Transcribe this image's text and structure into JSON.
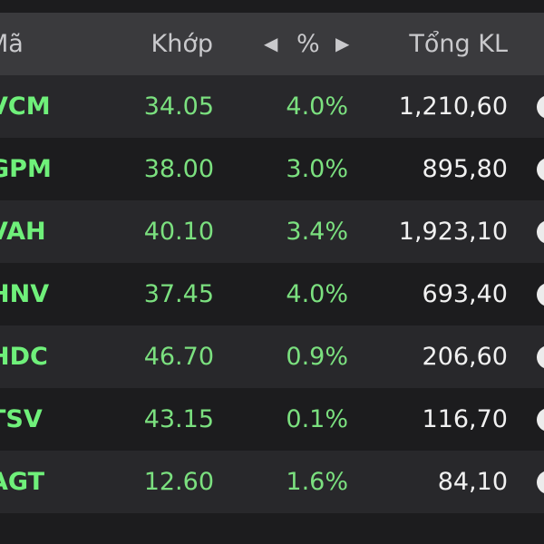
{
  "header": {
    "symbol_label": "Mã",
    "match_label": "Khớp",
    "pct_label": "%",
    "total_label": "Tổng KL",
    "prev_icon": "◀",
    "next_icon": "▶"
  },
  "rows": [
    {
      "symbol": "VCM",
      "price": "34.05",
      "pct": "4.0%",
      "volume": "1,210,60"
    },
    {
      "symbol": "GPM",
      "price": "38.00",
      "pct": "3.0%",
      "volume": "895,80"
    },
    {
      "symbol": "VAH",
      "price": "40.10",
      "pct": "3.4%",
      "volume": "1,923,10"
    },
    {
      "symbol": "HNV",
      "price": "37.45",
      "pct": "4.0%",
      "volume": "693,40"
    },
    {
      "symbol": "HDC",
      "price": "46.70",
      "pct": "0.9%",
      "volume": "206,60"
    },
    {
      "symbol": "TSV",
      "price": "43.15",
      "pct": "0.1%",
      "volume": "116,70"
    },
    {
      "symbol": "AGT",
      "price": "12.60",
      "pct": "1.6%",
      "volume": "84,10"
    }
  ],
  "colors": {
    "up_green": "#7be07f",
    "symbol_green": "#6ff07a",
    "header_bg": "#3a3a3d",
    "row_alt_bg": "#28282b",
    "row_bg": "#1c1c1e"
  }
}
